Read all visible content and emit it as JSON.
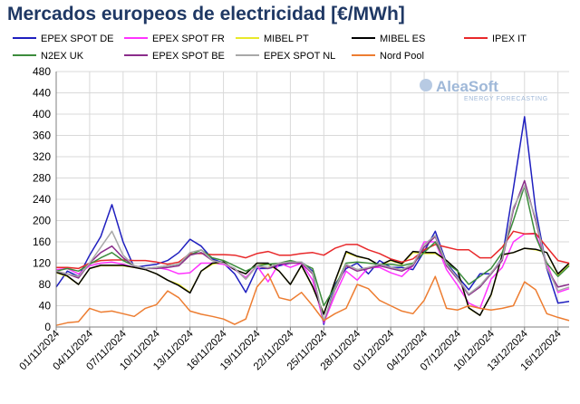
{
  "chart_data": {
    "type": "line",
    "title": "Mercados europeos de electricidad [€/MWh]",
    "xlabel": "",
    "ylabel": "",
    "ylim": [
      0,
      480
    ],
    "yticks": [
      0,
      40,
      80,
      120,
      160,
      200,
      240,
      280,
      320,
      360,
      400,
      440,
      480
    ],
    "grid": true,
    "legend_position": "top",
    "x_start": "01/11/2024",
    "x": [
      "01/11",
      "02/11",
      "03/11",
      "04/11",
      "05/11",
      "06/11",
      "07/11",
      "08/11",
      "09/11",
      "10/11",
      "11/11",
      "12/11",
      "13/11",
      "14/11",
      "15/11",
      "16/11",
      "17/11",
      "18/11",
      "19/11",
      "20/11",
      "21/11",
      "22/11",
      "23/11",
      "24/11",
      "25/11",
      "26/11",
      "27/11",
      "28/11",
      "29/11",
      "30/11",
      "01/12",
      "02/12",
      "03/12",
      "04/12",
      "05/12",
      "06/12",
      "07/12",
      "08/12",
      "09/12",
      "10/12",
      "11/12",
      "12/12",
      "13/12",
      "14/12",
      "15/12",
      "16/12",
      "17/12"
    ],
    "x_tick_labels": [
      "01/11/2024",
      "04/11/2024",
      "07/11/2024",
      "10/11/2024",
      "13/11/2024",
      "16/11/2024",
      "19/11/2024",
      "22/11/2024",
      "25/11/2024",
      "28/11/2024",
      "01/12/2024",
      "04/12/2024",
      "07/12/2024",
      "10/12/2024",
      "13/12/2024",
      "16/12/2024"
    ],
    "x_tick_every": 3,
    "series": [
      {
        "name": "EPEX SPOT DE",
        "color": "#1f1fbf",
        "values": [
          75,
          105,
          95,
          135,
          170,
          230,
          160,
          112,
          115,
          118,
          125,
          140,
          165,
          152,
          128,
          120,
          100,
          65,
          110,
          110,
          115,
          120,
          122,
          105,
          5,
          80,
          110,
          120,
          100,
          125,
          112,
          112,
          108,
          142,
          180,
          120,
          95,
          70,
          100,
          100,
          130,
          260,
          395,
          220,
          110,
          45,
          48
        ]
      },
      {
        "name": "EPEX SPOT FR",
        "color": "#ff33ff",
        "values": [
          108,
          110,
          100,
          115,
          120,
          122,
          118,
          112,
          110,
          112,
          108,
          100,
          102,
          120,
          120,
          118,
          108,
          93,
          115,
          85,
          120,
          112,
          120,
          88,
          8,
          60,
          105,
          88,
          112,
          112,
          102,
          95,
          115,
          160,
          160,
          108,
          78,
          45,
          35,
          90,
          112,
          160,
          175,
          175,
          120,
          65,
          72
        ]
      },
      {
        "name": "MIBEL PT",
        "color": "#e8e82a",
        "values": [
          102,
          95,
          80,
          110,
          115,
          115,
          115,
          112,
          108,
          100,
          88,
          80,
          65,
          105,
          118,
          122,
          108,
          100,
          120,
          118,
          105,
          80,
          115,
          75,
          25,
          85,
          140,
          132,
          128,
          115,
          125,
          118,
          140,
          138,
          138,
          125,
          105,
          35,
          22,
          60,
          135,
          140,
          148,
          145,
          140,
          98,
          118
        ]
      },
      {
        "name": "MIBEL ES",
        "color": "#000000",
        "values": [
          103,
          96,
          80,
          110,
          116,
          116,
          116,
          112,
          108,
          100,
          88,
          78,
          64,
          105,
          120,
          122,
          108,
          100,
          120,
          120,
          105,
          80,
          116,
          76,
          24,
          86,
          142,
          133,
          128,
          116,
          126,
          119,
          142,
          140,
          140,
          125,
          106,
          36,
          22,
          61,
          136,
          140,
          148,
          146,
          140,
          100,
          120
        ]
      },
      {
        "name": "IPEX IT",
        "color": "#e8282a",
        "values": [
          112,
          112,
          110,
          120,
          125,
          126,
          126,
          125,
          125,
          122,
          118,
          122,
          138,
          138,
          136,
          136,
          135,
          130,
          138,
          142,
          135,
          135,
          138,
          140,
          135,
          148,
          155,
          155,
          145,
          138,
          128,
          122,
          128,
          145,
          155,
          150,
          145,
          145,
          130,
          130,
          150,
          180,
          175,
          176,
          150,
          125,
          120
        ]
      },
      {
        "name": "N2EX UK",
        "color": "#3c8c3c",
        "values": [
          105,
          110,
          105,
          118,
          130,
          140,
          125,
          115,
          110,
          112,
          115,
          118,
          135,
          145,
          130,
          125,
          115,
          105,
          115,
          118,
          120,
          125,
          120,
          110,
          40,
          75,
          120,
          122,
          120,
          118,
          118,
          115,
          120,
          140,
          160,
          120,
          105,
          80,
          95,
          110,
          140,
          200,
          265,
          170,
          120,
          95,
          115
        ]
      },
      {
        "name": "EPEX SPOT BE",
        "color": "#8b2d8b",
        "values": [
          105,
          100,
          92,
          120,
          140,
          152,
          130,
          115,
          110,
          110,
          112,
          115,
          135,
          140,
          125,
          120,
          110,
          90,
          115,
          110,
          118,
          120,
          120,
          100,
          10,
          70,
          115,
          105,
          110,
          115,
          110,
          105,
          115,
          150,
          170,
          115,
          90,
          60,
          75,
          100,
          125,
          220,
          275,
          200,
          110,
          75,
          80
        ]
      },
      {
        "name": "EPEX SPOT NL",
        "color": "#a8a8a8",
        "values": [
          105,
          100,
          95,
          120,
          150,
          180,
          135,
          115,
          110,
          112,
          115,
          118,
          140,
          145,
          125,
          120,
          110,
          90,
          115,
          112,
          120,
          122,
          122,
          102,
          12,
          72,
          118,
          108,
          112,
          118,
          112,
          108,
          118,
          155,
          172,
          118,
          92,
          62,
          78,
          102,
          128,
          225,
          265,
          205,
          112,
          68,
          75
        ]
      },
      {
        "name": "Nord Pool",
        "color": "#ed7d31",
        "values": [
          3,
          8,
          10,
          35,
          28,
          30,
          25,
          20,
          35,
          42,
          68,
          55,
          30,
          24,
          20,
          15,
          5,
          15,
          75,
          100,
          55,
          50,
          65,
          40,
          12,
          25,
          35,
          80,
          72,
          50,
          40,
          30,
          25,
          50,
          95,
          35,
          32,
          40,
          35,
          32,
          35,
          40,
          85,
          70,
          25,
          18,
          12
        ]
      }
    ]
  },
  "logo": {
    "name": "AleaSoft",
    "subtitle": "ENERGY FORECASTING"
  }
}
